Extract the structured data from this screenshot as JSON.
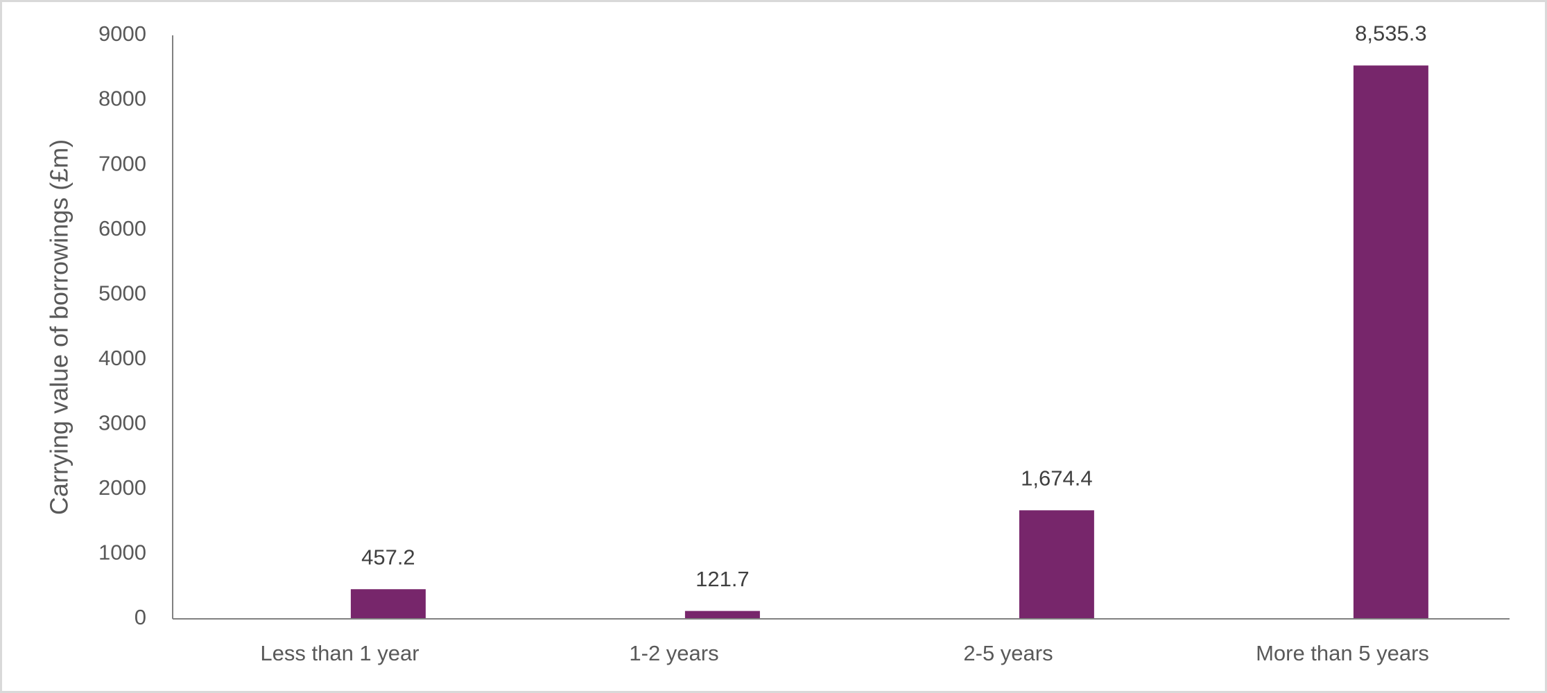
{
  "chart_data": {
    "type": "bar",
    "y_label": "Carrying value of borrowings (£m)",
    "categories": [
      "Less than 1 year",
      "1-2 years",
      "2-5 years",
      "More than 5 years"
    ],
    "values": [
      457.2,
      121.7,
      1674.4,
      8535.3
    ],
    "value_labels": [
      "457.2",
      "121.7",
      "1,674.4",
      "8,535.3"
    ],
    "color": "#77266b",
    "ylim": [
      0,
      9000
    ],
    "yticks": [
      0,
      1000,
      2000,
      3000,
      4000,
      5000,
      6000,
      7000,
      8000,
      9000
    ],
    "grid": false
  }
}
